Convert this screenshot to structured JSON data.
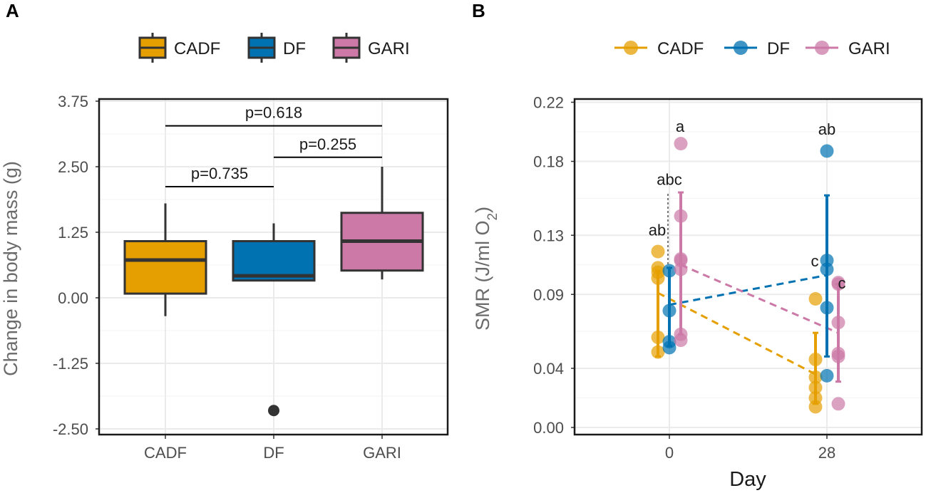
{
  "panels": {
    "a_label": "A",
    "b_label": "B"
  },
  "colors": {
    "CADF": "#E69F00",
    "DF": "#0072B2",
    "GARI": "#CC79A7",
    "grid": "#EBEBEB",
    "box_outline": "#333333"
  },
  "chart_data": [
    {
      "type": "box",
      "panel": "A",
      "title": "",
      "xlabel": "",
      "ylabel": "Change in body mass (g)",
      "categories": [
        "CADF",
        "DF",
        "GARI"
      ],
      "ylim": [
        -2.75,
        3.75
      ],
      "yticks": [
        3.75,
        2.5,
        1.25,
        0.0,
        -1.25,
        -2.5
      ],
      "ytick_labels": [
        "3.75",
        "2.50",
        "1.25",
        "0.00",
        "-1.25",
        "-2.50"
      ],
      "boxes": [
        {
          "group": "CADF",
          "whisker_low": -0.35,
          "q1": 0.08,
          "median": 0.72,
          "q3": 1.08,
          "whisker_high": 1.8,
          "outliers": []
        },
        {
          "group": "DF",
          "whisker_low": 0.33,
          "q1": 0.33,
          "median": 0.42,
          "q3": 1.08,
          "whisker_high": 1.42,
          "outliers": [
            -2.15
          ]
        },
        {
          "group": "GARI",
          "whisker_low": 0.35,
          "q1": 0.52,
          "median": 1.08,
          "q3": 1.62,
          "whisker_high": 2.5,
          "outliers": []
        }
      ],
      "comparisons": [
        {
          "from": "CADF",
          "to": "GARI",
          "y": 3.28,
          "label": "p=0.618"
        },
        {
          "from": "DF",
          "to": "GARI",
          "y": 2.68,
          "label": "p=0.255"
        },
        {
          "from": "CADF",
          "to": "DF",
          "y": 2.12,
          "label": "p=0.735"
        }
      ],
      "legend": [
        "CADF",
        "DF",
        "GARI"
      ],
      "legend_position": "top",
      "grid": true
    },
    {
      "type": "scatter",
      "panel": "B",
      "title": "",
      "xlabel": "Day",
      "ylabel": "SMR (J/ml O",
      "ylabel_subscript": "2",
      "ylabel_close": ")",
      "x_categories": [
        "0",
        "28"
      ],
      "ylim": [
        -0.005,
        0.225
      ],
      "yticks": [
        0.0,
        0.04,
        0.09,
        0.13,
        0.18,
        0.22
      ],
      "ytick_labels": [
        "0.00",
        "0.04",
        "0.09",
        "0.13",
        "0.18",
        "0.22"
      ],
      "legend": [
        "CADF",
        "DF",
        "GARI"
      ],
      "legend_position": "top",
      "grid": true,
      "series": [
        {
          "name": "CADF",
          "day0_points": [
            0.051,
            0.061,
            0.101,
            0.105,
            0.108,
            0.119
          ],
          "day28_points": [
            0.014,
            0.02,
            0.027,
            0.034,
            0.046,
            0.087
          ],
          "day0_mean": 0.091,
          "day0_err_low": 0.048,
          "day0_err_high": 0.106,
          "day28_mean": 0.036,
          "day28_err_low": 0.016,
          "day28_err_high": 0.064
        },
        {
          "name": "DF",
          "day0_points": [
            0.054,
            0.058,
            0.079,
            0.106
          ],
          "day28_points": [
            0.035,
            0.081,
            0.107,
            0.113,
            0.187
          ],
          "day0_mean": 0.083,
          "day0_err_low": 0.055,
          "day0_err_high": 0.108,
          "day28_mean": 0.103,
          "day28_err_low": 0.048,
          "day28_err_high": 0.157
        },
        {
          "name": "GARI",
          "day0_points": [
            0.059,
            0.063,
            0.107,
            0.113,
            0.114,
            0.143,
            0.192
          ],
          "day28_points": [
            0.016,
            0.048,
            0.05,
            0.071,
            0.097,
            0.098
          ],
          "day0_mean": 0.11,
          "day0_err_low": 0.063,
          "day0_err_high": 0.159,
          "day28_mean": 0.064,
          "day28_err_low": 0.031,
          "day28_err_high": 0.097
        }
      ],
      "annotations": [
        {
          "text": "a",
          "day": "0",
          "y": 0.2
        },
        {
          "text": "abc",
          "day": "0",
          "y": 0.164
        },
        {
          "text": "ab",
          "day": "0",
          "y": 0.13
        },
        {
          "text": "ab",
          "day": "28",
          "y": 0.198
        },
        {
          "text": "c",
          "day": "28",
          "y": 0.109
        },
        {
          "text": "c",
          "day": "28",
          "y": 0.094
        }
      ]
    }
  ]
}
